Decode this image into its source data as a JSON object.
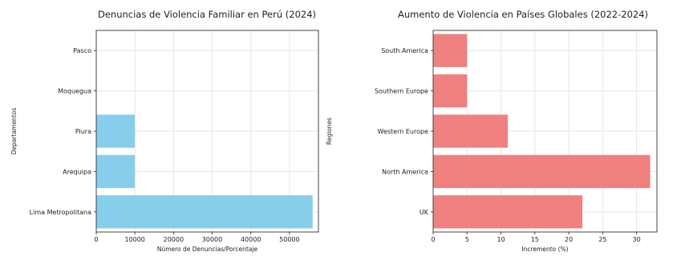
{
  "chart_data": [
    {
      "type": "bar",
      "orientation": "horizontal",
      "title": "Denuncias de Violencia Familiar en Perú (2024)",
      "xlabel": "Número de Denuncias/Porcentaje",
      "ylabel": "Departamentos",
      "categories": [
        "Pasco",
        "Moquegua",
        "Piura",
        "Arequipa",
        "Lima Metropolitana"
      ],
      "values": [
        0,
        0,
        10000,
        10000,
        56000
      ],
      "xlim": [
        0,
        57500
      ],
      "xticks": [
        0,
        10000,
        20000,
        30000,
        40000,
        50000
      ],
      "grid": true,
      "bar_color": "#87ceeb"
    },
    {
      "type": "bar",
      "orientation": "horizontal",
      "title": "Aumento de Violencia en Países Globales (2022-2024)",
      "xlabel": "Incremento (%)",
      "ylabel": "Regiones",
      "categories": [
        "South America",
        "Southern Europe",
        "Western Europe",
        "North America",
        "UK"
      ],
      "values": [
        5,
        5,
        11,
        32,
        22
      ],
      "xlim": [
        0,
        33
      ],
      "xticks": [
        0,
        5,
        10,
        15,
        20,
        25,
        30
      ],
      "grid": true,
      "bar_color": "#f08080"
    }
  ]
}
